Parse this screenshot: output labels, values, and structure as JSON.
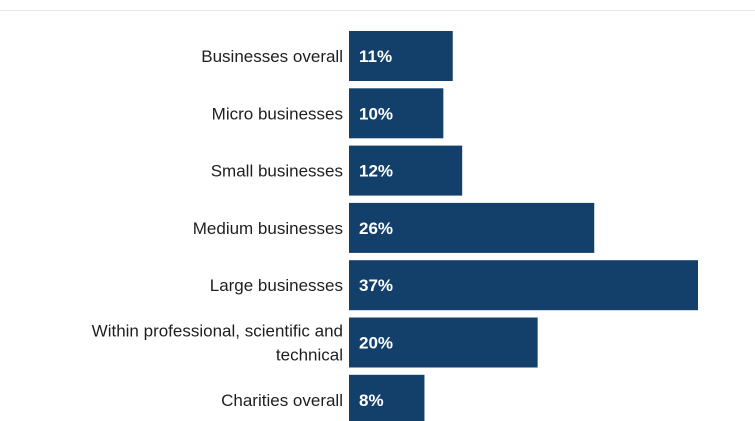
{
  "chart_data": {
    "type": "bar",
    "orientation": "horizontal",
    "title": "",
    "xlabel": "",
    "ylabel": "",
    "categories": [
      "Businesses overall",
      "Micro businesses",
      "Small businesses",
      "Medium businesses",
      "Large businesses",
      "Within professional, scientific and technical",
      "Charities overall"
    ],
    "values": [
      11,
      10,
      12,
      26,
      37,
      20,
      8
    ],
    "value_labels": [
      "11%",
      "10%",
      "12%",
      "26%",
      "37%",
      "20%",
      "8%"
    ],
    "unit": "%",
    "xlim": [
      0,
      37
    ],
    "grid": false,
    "legend": "none",
    "bar_color": "#13406b"
  }
}
